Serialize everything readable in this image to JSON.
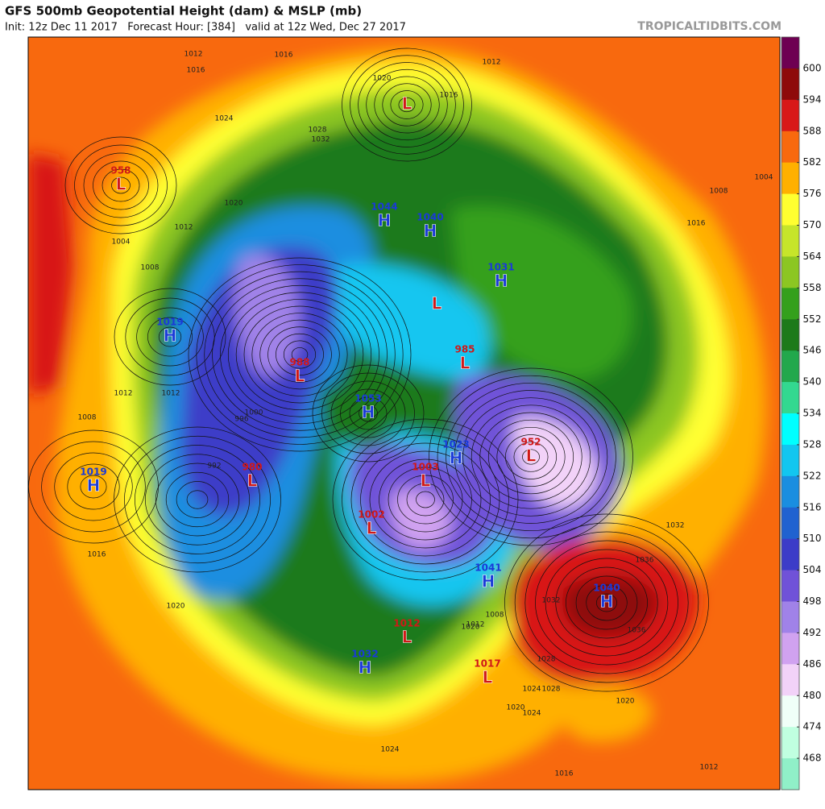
{
  "header": {
    "title": "GFS 500mb Geopotential Height (dam) & MSLP (mb)",
    "subtitle": "Init: 12z Dec 11 2017   Forecast Hour: [384]   valid at 12z Wed, Dec 27 2017",
    "site": "TROPICALTIDBITS.COM"
  },
  "colorbar": {
    "ticks": [
      600,
      594,
      588,
      582,
      576,
      570,
      564,
      558,
      552,
      546,
      540,
      534,
      528,
      522,
      516,
      510,
      504,
      498,
      492,
      486,
      480,
      474,
      468
    ],
    "colors": [
      "#6e0052",
      "#8e0a0a",
      "#d81818",
      "#f8690e",
      "#ffb000",
      "#ffff30",
      "#c6e52a",
      "#8cc622",
      "#34a01c",
      "#1d7a1a",
      "#22a84c",
      "#33d890",
      "#00ffff",
      "#12c6f0",
      "#1a8ee0",
      "#2062d0",
      "#3c3cc8",
      "#7052d8",
      "#a082e8",
      "#d0a2f0",
      "#f2d2f8",
      "#f0fff8",
      "#c0ffe0",
      "#90f0c8"
    ]
  },
  "centers": [
    {
      "type": "L",
      "value": 958
    },
    {
      "type": "L"
    },
    {
      "type": "H",
      "value": 1044
    },
    {
      "type": "H",
      "value": 1040
    },
    {
      "type": "H",
      "value": 1031
    },
    {
      "type": "L"
    },
    {
      "type": "L",
      "value": 985
    },
    {
      "type": "H",
      "value": 1019
    },
    {
      "type": "L",
      "value": 988
    },
    {
      "type": "H",
      "value": 1053
    },
    {
      "type": "H",
      "value": 1019
    },
    {
      "type": "L",
      "value": 980
    },
    {
      "type": "H",
      "value": 1023
    },
    {
      "type": "L",
      "value": 1003
    },
    {
      "type": "L",
      "value": 952
    },
    {
      "type": "L",
      "value": 1002
    },
    {
      "type": "H",
      "value": 1041
    },
    {
      "type": "H",
      "value": 1040
    },
    {
      "type": "L",
      "value": 1012
    },
    {
      "type": "H",
      "value": 1032
    },
    {
      "type": "L",
      "value": 1017
    }
  ],
  "isobar_labels": [
    1012,
    1016,
    1024,
    1020,
    1028,
    1032,
    1016,
    1020,
    1016,
    1004,
    1012,
    1008,
    1012,
    1008,
    1016,
    1012,
    1020,
    1036,
    1032,
    1028,
    1024,
    1020,
    1012,
    1016,
    1020,
    1024,
    1016,
    1012,
    1004,
    1008,
    1032,
    1036,
    1028,
    1024,
    1020,
    1012,
    992,
    996,
    1000,
    1008
  ]
}
